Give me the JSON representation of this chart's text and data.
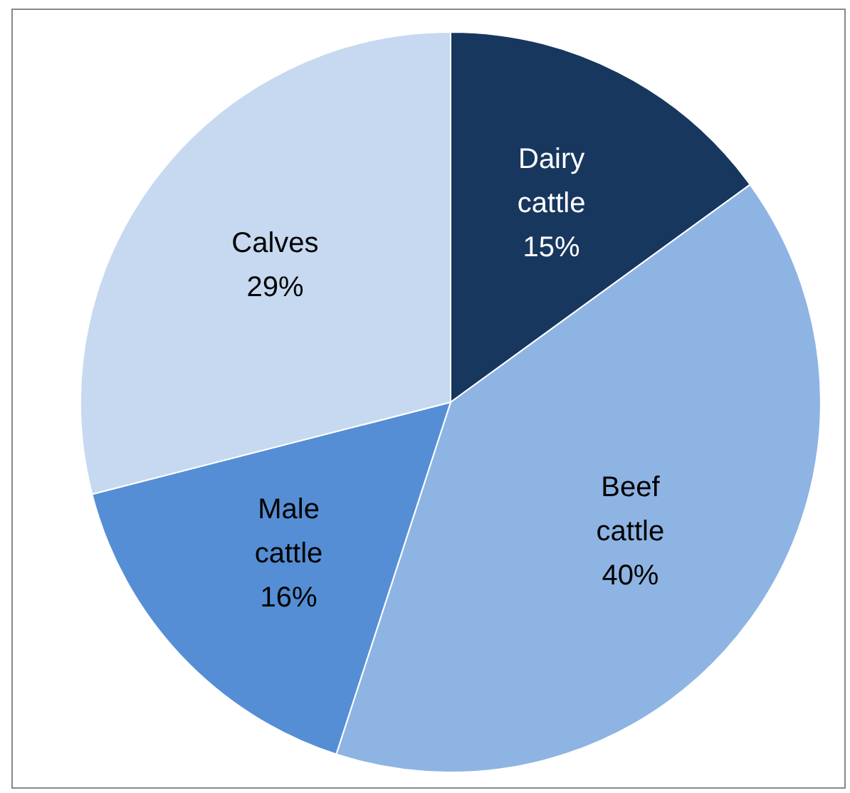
{
  "chart_data": {
    "type": "pie",
    "categories": [
      "Dairy cattle",
      "Beef cattle",
      "Male cattle",
      "Calves"
    ],
    "values": [
      15,
      40,
      16,
      29
    ],
    "colors": [
      "#17375e",
      "#8eb4e3",
      "#558ed5",
      "#c6d9f1"
    ],
    "value_labels": [
      "15%",
      "40%",
      "16%",
      "29%"
    ]
  }
}
